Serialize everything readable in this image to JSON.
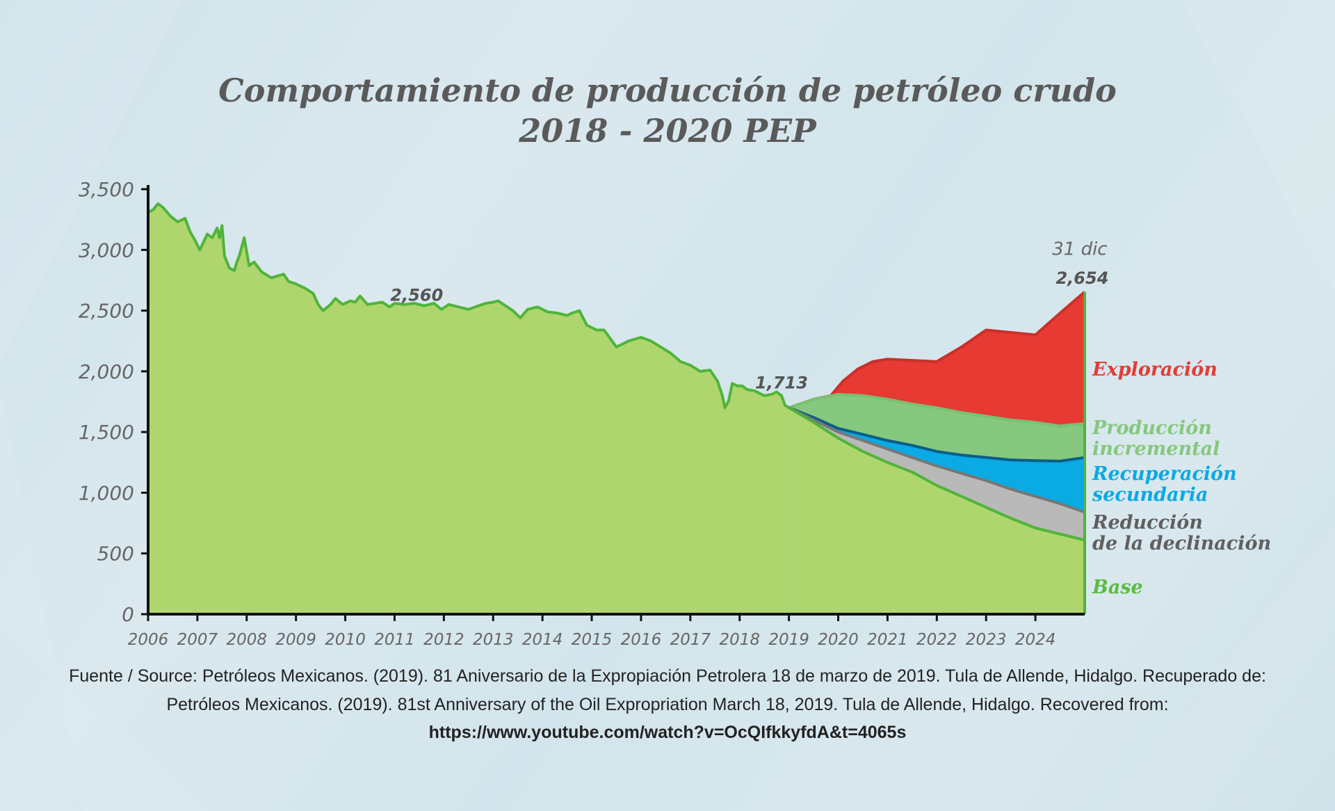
{
  "chart_data": {
    "type": "area",
    "title": "Comportamiento de producción de petróleo crudo",
    "subtitle": "2018 - 2020 PEP",
    "ylim": [
      0,
      3500
    ],
    "yticks": [
      "0",
      "500",
      "1,000",
      "1,500",
      "2,000",
      "2,500",
      "3,000",
      "3,500"
    ],
    "ytick_values": [
      0,
      500,
      1000,
      1500,
      2000,
      2500,
      3000,
      3500
    ],
    "xlim": [
      2006,
      2025
    ],
    "xticks": [
      "2006",
      "2007",
      "2008",
      "2009",
      "2010",
      "2011",
      "2012",
      "2013",
      "2014",
      "2015",
      "2016",
      "2017",
      "2018",
      "2019",
      "2020",
      "2021",
      "2022",
      "2023",
      "2024"
    ],
    "grid": false,
    "historical": {
      "x": [
        2006.0,
        2006.1,
        2006.2,
        2006.3,
        2006.45,
        2006.6,
        2006.75,
        2006.85,
        2006.95,
        2007.05,
        2007.2,
        2007.3,
        2007.4,
        2007.45,
        2007.5,
        2007.55,
        2007.65,
        2007.75,
        2007.8,
        2007.85,
        2007.95,
        2008.05,
        2008.15,
        2008.3,
        2008.5,
        2008.75,
        2008.85,
        2009.0,
        2009.2,
        2009.35,
        2009.45,
        2009.55,
        2009.7,
        2009.8,
        2009.95,
        2010.1,
        2010.2,
        2010.3,
        2010.45,
        2010.6,
        2010.75,
        2010.9,
        2011.0,
        2011.2,
        2011.4,
        2011.6,
        2011.8,
        2011.95,
        2012.1,
        2012.3,
        2012.5,
        2012.7,
        2012.85,
        2013.0,
        2013.1,
        2013.25,
        2013.4,
        2013.55,
        2013.7,
        2013.9,
        2014.1,
        2014.3,
        2014.5,
        2014.6,
        2014.75,
        2014.9,
        2015.1,
        2015.25,
        2015.5,
        2015.75,
        2016.0,
        2016.2,
        2016.4,
        2016.6,
        2016.8,
        2017.0,
        2017.2,
        2017.4,
        2017.55,
        2017.65,
        2017.7,
        2017.78,
        2017.85,
        2017.95,
        2018.05,
        2018.15,
        2018.3,
        2018.5,
        2018.65,
        2018.75,
        2018.85,
        2018.92,
        2019.0
      ],
      "y": [
        3310,
        3330,
        3380,
        3350,
        3280,
        3230,
        3260,
        3150,
        3080,
        3000,
        3130,
        3100,
        3180,
        3100,
        3200,
        2950,
        2850,
        2830,
        2900,
        2950,
        3100,
        2870,
        2900,
        2820,
        2770,
        2800,
        2740,
        2720,
        2680,
        2640,
        2550,
        2500,
        2550,
        2600,
        2550,
        2580,
        2570,
        2620,
        2550,
        2560,
        2570,
        2530,
        2560,
        2550,
        2560,
        2540,
        2560,
        2510,
        2550,
        2530,
        2510,
        2540,
        2560,
        2570,
        2580,
        2540,
        2500,
        2440,
        2510,
        2530,
        2490,
        2480,
        2460,
        2480,
        2500,
        2380,
        2340,
        2340,
        2200,
        2250,
        2280,
        2250,
        2200,
        2150,
        2080,
        2050,
        2000,
        2010,
        1920,
        1800,
        1700,
        1760,
        1900,
        1880,
        1880,
        1850,
        1840,
        1800,
        1810,
        1830,
        1800,
        1720,
        1700
      ]
    },
    "series": [
      {
        "name": "Base",
        "color": "#5cbb40",
        "x": [
          2019.0,
          2019.5,
          2020.0,
          2020.5,
          2021.0,
          2021.5,
          2022.0,
          2022.5,
          2023.0,
          2023.5,
          2024.0,
          2024.5,
          2025.0
        ],
        "y": [
          1700,
          1580,
          1450,
          1340,
          1250,
          1170,
          1060,
          970,
          880,
          790,
          710,
          660,
          610
        ]
      },
      {
        "name": "Reducción de la declinación",
        "color": "#b9b9b9",
        "x": [
          2019.0,
          2019.5,
          2020.0,
          2020.5,
          2021.0,
          2021.5,
          2022.0,
          2022.5,
          2023.0,
          2023.5,
          2024.0,
          2024.5,
          2025.0
        ],
        "y": [
          1700,
          1600,
          1500,
          1430,
          1360,
          1290,
          1220,
          1160,
          1100,
          1030,
          970,
          910,
          840
        ]
      },
      {
        "name": "Recuperación secundaria",
        "color": "#0aaae4",
        "x": [
          2019.0,
          2019.5,
          2020.0,
          2020.5,
          2021.0,
          2021.5,
          2022.0,
          2022.5,
          2023.0,
          2023.5,
          2024.0,
          2024.5,
          2025.0
        ],
        "y": [
          1700,
          1620,
          1530,
          1480,
          1430,
          1390,
          1340,
          1310,
          1290,
          1270,
          1265,
          1260,
          1290
        ]
      },
      {
        "name": "Producción incremental",
        "color": "#85c87e",
        "x": [
          2019.0,
          2019.5,
          2020.0,
          2020.5,
          2021.0,
          2021.5,
          2022.0,
          2022.5,
          2023.0,
          2023.5,
          2024.0,
          2024.5,
          2025.0
        ],
        "y": [
          1700,
          1770,
          1810,
          1800,
          1770,
          1730,
          1700,
          1660,
          1630,
          1600,
          1580,
          1550,
          1570
        ]
      },
      {
        "name": "Exploración",
        "color": "#e63a33",
        "x": [
          2019.0,
          2019.5,
          2019.85,
          2020.1,
          2020.4,
          2020.7,
          2021.0,
          2021.5,
          2022.0,
          2022.5,
          2023.0,
          2023.5,
          2024.0,
          2024.5,
          2025.0
        ],
        "y": [
          1700,
          1770,
          1800,
          1920,
          2020,
          2080,
          2100,
          2090,
          2080,
          2200,
          2340,
          2320,
          2300,
          2480,
          2654
        ]
      }
    ],
    "annotations": [
      {
        "text": "2,560",
        "x": 2011.45,
        "y": 2580
      },
      {
        "text": "1,713",
        "x": 2018.85,
        "y": 1860
      },
      {
        "text": "31 dic",
        "x": 2024.9,
        "y": 2960
      },
      {
        "text": "2,654",
        "x": 2024.95,
        "y": 2720
      }
    ],
    "legend_labels": [
      {
        "lines": [
          "Exploración"
        ],
        "color": "#e63a33"
      },
      {
        "lines": [
          "Producción",
          "incremental"
        ],
        "color": "#85c87e"
      },
      {
        "lines": [
          "Recuperación",
          "secundaria"
        ],
        "color": "#0aaae4"
      },
      {
        "lines": [
          "Reducción",
          "de la declinación"
        ],
        "color": "#606060"
      },
      {
        "lines": [
          "Base"
        ],
        "color": "#5cbb40"
      }
    ],
    "legend_placement": "right"
  },
  "source": {
    "line1": "Fuente / Source: Petróleos Mexicanos. (2019). 81 Aniversario de la Expropiación Petrolera 18 de marzo de 2019. Tula de Allende, Hidalgo. Recuperado de:",
    "line2": "Petróleos Mexicanos. (2019). 81st Anniversary of the Oil Expropriation March 18, 2019. Tula de Allende, Hidalgo. Recovered from:",
    "line3": "https://www.youtube.com/watch?v=OcQIfkkyfdA&t=4065s"
  }
}
